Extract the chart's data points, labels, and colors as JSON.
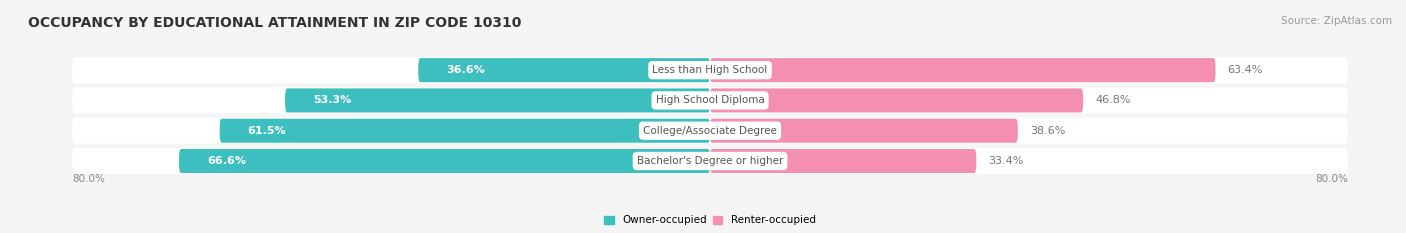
{
  "title": "OCCUPANCY BY EDUCATIONAL ATTAINMENT IN ZIP CODE 10310",
  "source": "Source: ZipAtlas.com",
  "categories": [
    "Less than High School",
    "High School Diploma",
    "College/Associate Degree",
    "Bachelor's Degree or higher"
  ],
  "owner_values": [
    36.6,
    53.3,
    61.5,
    66.6
  ],
  "renter_values": [
    63.4,
    46.8,
    38.6,
    33.4
  ],
  "owner_color": "#3DBFBF",
  "renter_color": "#F48FB1",
  "background_color": "#f5f5f5",
  "bar_bg_color": "#ffffff",
  "xlim_left": -80.0,
  "xlim_right": 80.0,
  "x_left_label": "80.0%",
  "x_right_label": "80.0%",
  "legend_owner": "Owner-occupied",
  "legend_renter": "Renter-occupied",
  "title_fontsize": 10,
  "source_fontsize": 7.5,
  "bar_label_fontsize": 8,
  "category_fontsize": 7.5,
  "axis_label_fontsize": 7.5
}
